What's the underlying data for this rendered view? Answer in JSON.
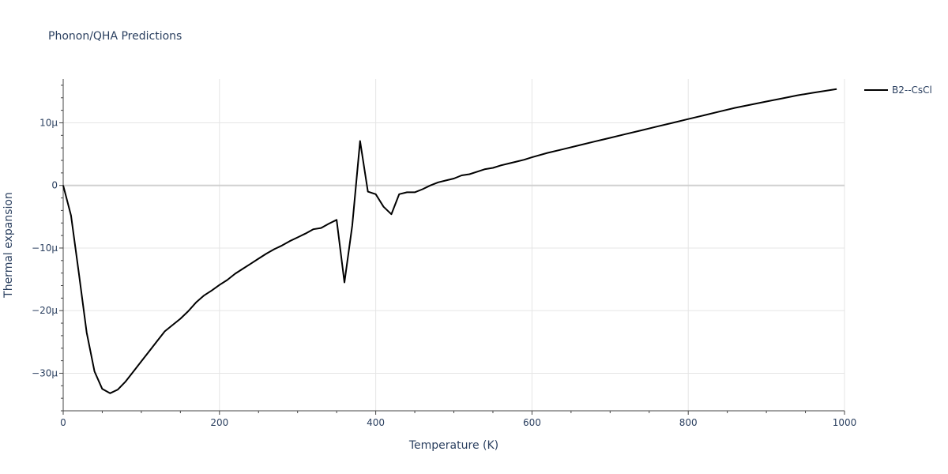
{
  "chart_data": {
    "type": "line",
    "title": "Phonon/QHA Predictions",
    "xlabel": "Temperature (K)",
    "ylabel": "Thermal expansion",
    "xlim": [
      0,
      1000
    ],
    "ylim": [
      -36,
      17
    ],
    "y_unit_suffix": "μ",
    "x_ticks": [
      0,
      200,
      400,
      600,
      800,
      1000
    ],
    "y_ticks": [
      -30,
      -20,
      -10,
      0,
      10
    ],
    "y_tick_labels": [
      "−30μ",
      "−20μ",
      "−10μ",
      "0",
      "10μ"
    ],
    "grid": true,
    "legend_position": "top-right",
    "series": [
      {
        "name": "B2--CsCl",
        "color": "#000000",
        "x": [
          0,
          10,
          20,
          30,
          40,
          50,
          60,
          70,
          80,
          90,
          100,
          110,
          120,
          130,
          140,
          150,
          160,
          170,
          180,
          190,
          200,
          210,
          220,
          230,
          240,
          250,
          260,
          270,
          280,
          290,
          300,
          310,
          320,
          330,
          340,
          350,
          360,
          370,
          380,
          390,
          400,
          410,
          420,
          430,
          440,
          450,
          460,
          470,
          480,
          490,
          500,
          510,
          520,
          530,
          540,
          550,
          560,
          570,
          580,
          590,
          600,
          620,
          640,
          660,
          680,
          700,
          720,
          740,
          760,
          780,
          800,
          820,
          840,
          860,
          880,
          900,
          920,
          940,
          960,
          990
        ],
        "y": [
          0,
          -4.8,
          -14,
          -23.5,
          -29.7,
          -32.5,
          -33.2,
          -32.6,
          -31.3,
          -29.7,
          -28.1,
          -26.5,
          -24.9,
          -23.3,
          -22.3,
          -21.3,
          -20.1,
          -18.7,
          -17.6,
          -16.8,
          -15.9,
          -15.1,
          -14.1,
          -13.3,
          -12.5,
          -11.7,
          -10.9,
          -10.2,
          -9.6,
          -8.9,
          -8.3,
          -7.7,
          -7.0,
          -6.8,
          -6.1,
          -5.5,
          -15.5,
          -6.4,
          7.1,
          -1.0,
          -1.4,
          -3.4,
          -4.6,
          -1.4,
          -1.1,
          -1.1,
          -0.6,
          0.0,
          0.5,
          0.8,
          1.1,
          1.6,
          1.8,
          2.2,
          2.6,
          2.8,
          3.2,
          3.5,
          3.8,
          4.1,
          4.5,
          5.2,
          5.8,
          6.4,
          7.0,
          7.6,
          8.2,
          8.8,
          9.4,
          10.0,
          10.6,
          11.2,
          11.8,
          12.4,
          12.9,
          13.4,
          13.9,
          14.4,
          14.8,
          15.4
        ]
      }
    ]
  }
}
